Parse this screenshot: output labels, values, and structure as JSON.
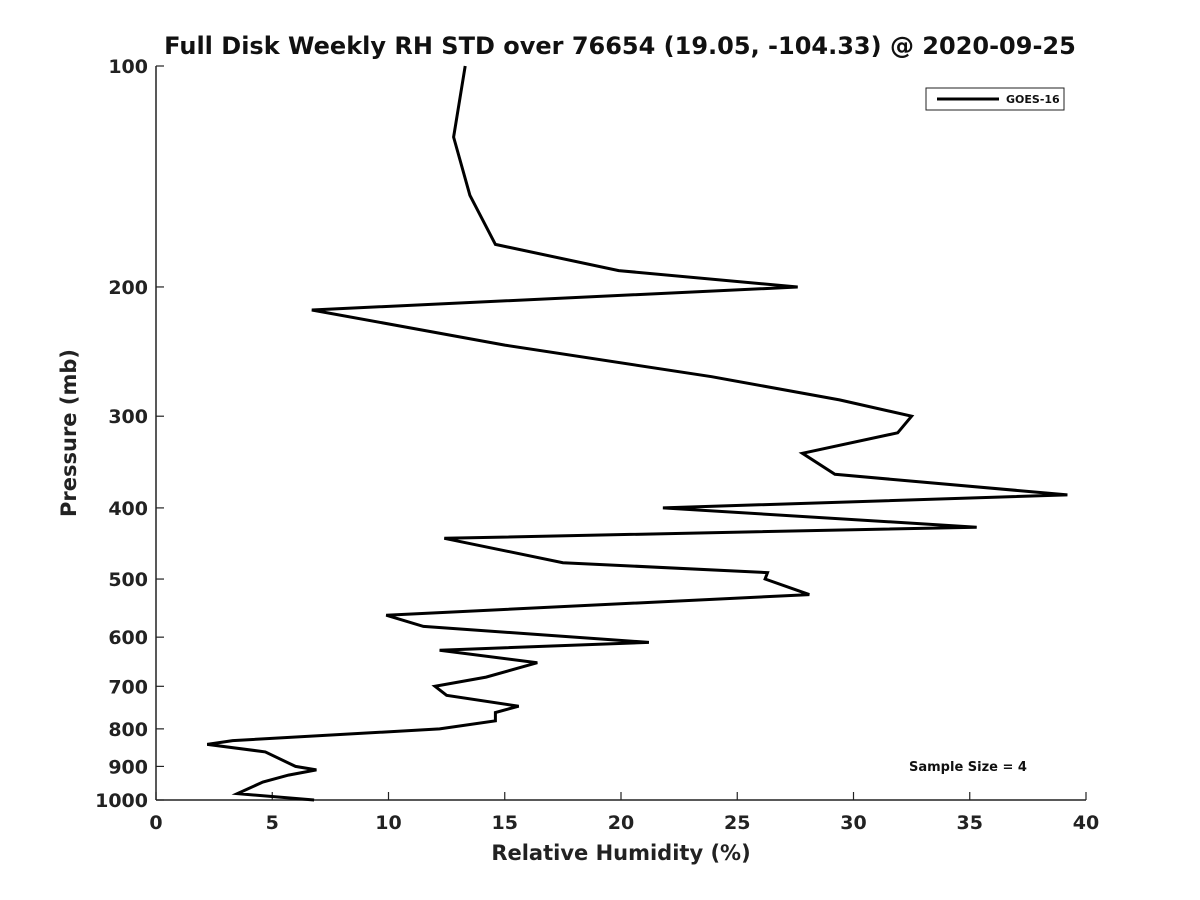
{
  "chart_data": {
    "type": "line",
    "title": "Full Disk Weekly RH STD over 76654 (19.05, -104.33) @ 2020-09-25",
    "xlabel": "Relative Humidity (%)",
    "ylabel": "Pressure (mb)",
    "xlim": [
      0,
      40
    ],
    "ylim": [
      100,
      1000
    ],
    "y_scale": "log",
    "y_reversed": true,
    "x_ticks": [
      0,
      5,
      10,
      15,
      20,
      25,
      30,
      35,
      40
    ],
    "x_tick_labels": [
      "0",
      "5",
      "10",
      "15",
      "20",
      "25",
      "30",
      "35",
      "40"
    ],
    "y_ticks": [
      100,
      200,
      300,
      400,
      500,
      600,
      700,
      800,
      900,
      1000
    ],
    "y_tick_labels": [
      "100",
      "200",
      "300",
      "400",
      "500",
      "600",
      "700",
      "800",
      "900",
      "1000"
    ],
    "grid": false,
    "legend": {
      "position": "top-right",
      "entries": [
        "GOES-16"
      ]
    },
    "annotation": "Sample Size = 4",
    "series": [
      {
        "name": "GOES-16",
        "color": "#000000",
        "points": [
          [
            13.3,
            100
          ],
          [
            12.8,
            125
          ],
          [
            13.5,
            150
          ],
          [
            14.6,
            175
          ],
          [
            19.9,
            190
          ],
          [
            27.6,
            200
          ],
          [
            6.7,
            215
          ],
          [
            15.0,
            240
          ],
          [
            23.9,
            265
          ],
          [
            29.4,
            285
          ],
          [
            32.5,
            300
          ],
          [
            31.9,
            316
          ],
          [
            27.8,
            337
          ],
          [
            29.2,
            360
          ],
          [
            39.2,
            384
          ],
          [
            21.8,
            400
          ],
          [
            35.3,
            425
          ],
          [
            12.4,
            440
          ],
          [
            17.5,
            475
          ],
          [
            26.3,
            490
          ],
          [
            26.2,
            500
          ],
          [
            28.1,
            525
          ],
          [
            9.9,
            560
          ],
          [
            11.5,
            580
          ],
          [
            21.2,
            610
          ],
          [
            12.2,
            625
          ],
          [
            16.4,
            650
          ],
          [
            14.2,
            680
          ],
          [
            12.0,
            700
          ],
          [
            12.5,
            720
          ],
          [
            15.6,
            745
          ],
          [
            14.6,
            760
          ],
          [
            14.6,
            780
          ],
          [
            12.2,
            800
          ],
          [
            3.3,
            830
          ],
          [
            2.2,
            840
          ],
          [
            4.7,
            860
          ],
          [
            6.0,
            900
          ],
          [
            6.9,
            910
          ],
          [
            5.7,
            925
          ],
          [
            4.6,
            945
          ],
          [
            3.5,
            980
          ],
          [
            6.8,
            1000
          ]
        ]
      }
    ]
  }
}
